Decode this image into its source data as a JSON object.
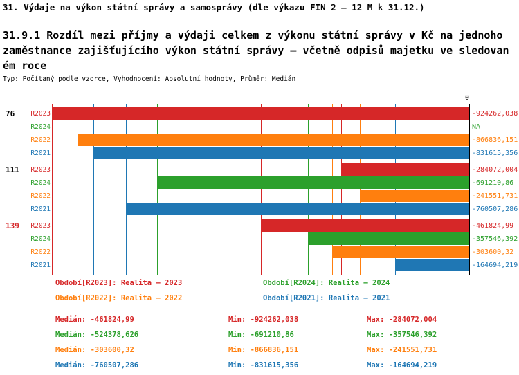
{
  "title": "31. Výdaje na výkon státní správy a samosprávy (dle výkazu FIN 2 – 12 M k 31.12.)",
  "subtitle_lines": [
    "31.9.1 Rozdíl mezi příjmy a výdaji celkem z výkonu státní správy v Kč na jednoho",
    "zaměstnance zajišťujícího výkon státní správy – včetně odpisů majetku ve sledovan",
    "ém roce"
  ],
  "meta_line": "Typ: Počítaný podle vzorce, Vyhodnocení: Absolutní hodnoty, Průměr: Medián",
  "axis_zero_label": "0",
  "colors": {
    "R2023": "#d62728",
    "R2024": "#2ca02c",
    "R2022": "#ff7f0e",
    "R2021": "#1f77b4"
  },
  "chart_data": {
    "type": "bar",
    "orientation": "horizontal",
    "value_axis": {
      "min": -924262.038,
      "max": 0,
      "zero_tick_label": "0",
      "position": "right"
    },
    "series_order": [
      "R2023",
      "R2024",
      "R2022",
      "R2021"
    ],
    "groups": [
      {
        "label": "76",
        "label_color": "#000000",
        "bars": [
          {
            "series": "R2023",
            "value": -924262.038,
            "value_label": "-924262,038"
          },
          {
            "series": "R2024",
            "value": null,
            "value_label": "NA"
          },
          {
            "series": "R2022",
            "value": -866836.151,
            "value_label": "-866836,151"
          },
          {
            "series": "R2021",
            "value": -831615.356,
            "value_label": "-831615,356"
          }
        ]
      },
      {
        "label": "111",
        "label_color": "#000000",
        "bars": [
          {
            "series": "R2023",
            "value": -284072.004,
            "value_label": "-284072,004"
          },
          {
            "series": "R2024",
            "value": -691210.86,
            "value_label": "-691210,86"
          },
          {
            "series": "R2022",
            "value": -241551.731,
            "value_label": "-241551,731"
          },
          {
            "series": "R2021",
            "value": -760507.286,
            "value_label": "-760507,286"
          }
        ]
      },
      {
        "label": "139",
        "label_color": "#d62728",
        "bars": [
          {
            "series": "R2023",
            "value": -461824.99,
            "value_label": "-461824,99"
          },
          {
            "series": "R2024",
            "value": -357546.392,
            "value_label": "-357546,392"
          },
          {
            "series": "R2022",
            "value": -303600.32,
            "value_label": "-303600,32"
          },
          {
            "series": "R2021",
            "value": -164694.219,
            "value_label": "-164694,219"
          }
        ]
      }
    ],
    "stat_lines": [
      {
        "series": "R2023",
        "median": -461824.99,
        "min": -924262.038,
        "max": -284072.004
      },
      {
        "series": "R2024",
        "median": -524378.626,
        "min": -691210.86,
        "max": -357546.392
      },
      {
        "series": "R2022",
        "median": -303600.32,
        "min": -866836.151,
        "max": -241551.731
      },
      {
        "series": "R2021",
        "median": -760507.286,
        "min": -831615.356,
        "max": -164694.219
      }
    ]
  },
  "legend": [
    {
      "series": "R2023",
      "label": "Období[R2023]: Realita – 2023"
    },
    {
      "series": "R2024",
      "label": "Období[R2024]: Realita – 2024"
    },
    {
      "series": "R2022",
      "label": "Období[R2022]: Realita – 2022"
    },
    {
      "series": "R2021",
      "label": "Období[R2021]: Realita – 2021"
    }
  ],
  "stats_panel": [
    {
      "series": "R2023",
      "median": "Medián: -461824,99",
      "min": "Min: -924262,038",
      "max": "Max: -284072,004"
    },
    {
      "series": "R2024",
      "median": "Medián: -524378,626",
      "min": "Min: -691210,86",
      "max": "Max: -357546,392"
    },
    {
      "series": "R2022",
      "median": "Medián: -303600,32",
      "min": "Min: -866836,151",
      "max": "Max: -241551,731"
    },
    {
      "series": "R2021",
      "median": "Medián: -760507,286",
      "min": "Min: -831615,356",
      "max": "Max: -164694,219"
    }
  ]
}
